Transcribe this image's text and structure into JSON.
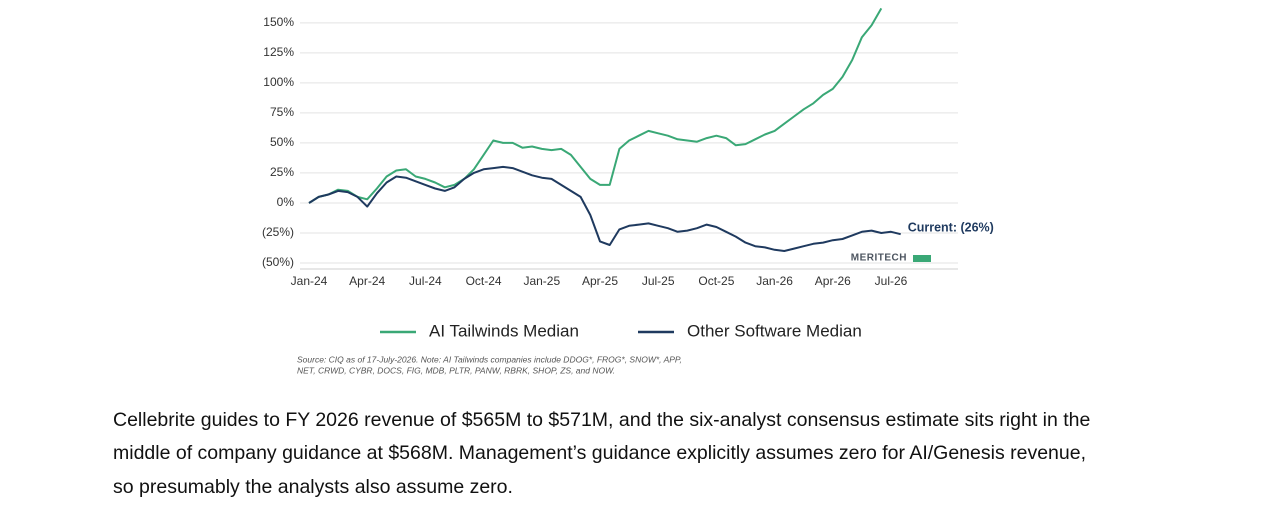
{
  "chart_data": {
    "type": "line",
    "categories": [
      "Jan-24",
      null,
      null,
      null,
      null,
      null,
      "Apr-24",
      null,
      null,
      null,
      null,
      null,
      "Jul-24",
      null,
      null,
      null,
      null,
      null,
      "Oct-24",
      null,
      null,
      null,
      null,
      null,
      "Jan-25",
      null,
      null,
      null,
      null,
      null,
      "Apr-25",
      null,
      null,
      null,
      null,
      null,
      "Jul-25",
      null,
      null,
      null,
      null,
      null,
      "Oct-25",
      null,
      null,
      null,
      null,
      null,
      "Jan-26",
      null,
      null,
      null,
      null,
      null,
      "Apr-26",
      null,
      null,
      null,
      null,
      null,
      "Jul-26",
      null
    ],
    "series": [
      {
        "name": "AI Tailwinds Median",
        "color": "#3aa876",
        "values": [
          0,
          5,
          7,
          11,
          10,
          5,
          3,
          12,
          22,
          27,
          28,
          22,
          20,
          17,
          13,
          15,
          20,
          28,
          40,
          52,
          50,
          50,
          46,
          47,
          45,
          44,
          45,
          40,
          30,
          20,
          15,
          15,
          45,
          52,
          56,
          60,
          58,
          56,
          53,
          52,
          51,
          54,
          56,
          54,
          48,
          49,
          53,
          57,
          60,
          66,
          72,
          78,
          83,
          90,
          95,
          105,
          119,
          138,
          148,
          162,
          null,
          null
        ]
      },
      {
        "name": "Other Software Median",
        "color": "#1f3a5f",
        "values": [
          0,
          5,
          7,
          10,
          9,
          5,
          -3,
          8,
          17,
          22,
          21,
          18,
          15,
          12,
          10,
          13,
          20,
          25,
          28,
          29,
          30,
          29,
          26,
          23,
          21,
          20,
          15,
          10,
          5,
          -10,
          -32,
          -35,
          -22,
          -19,
          -18,
          -17,
          -19,
          -21,
          -24,
          -23,
          -21,
          -18,
          -20,
          -24,
          -28,
          -33,
          -36,
          -37,
          -39,
          -40,
          -38,
          -36,
          -34,
          -33,
          -31,
          -30,
          -27,
          -24,
          -23,
          -25,
          -24,
          -26
        ]
      }
    ],
    "ylim": [
      -55,
      169
    ],
    "yticks": [
      {
        "value": -50,
        "label": "(50%)"
      },
      {
        "value": -25,
        "label": "(25%)"
      },
      {
        "value": 0,
        "label": "0%"
      },
      {
        "value": 25,
        "label": "25%"
      },
      {
        "value": 50,
        "label": "50%"
      },
      {
        "value": 75,
        "label": "75%"
      },
      {
        "value": 100,
        "label": "100%"
      },
      {
        "value": 125,
        "label": "125%"
      },
      {
        "value": 150,
        "label": "150%"
      }
    ],
    "grid": true,
    "legend": "bottom",
    "annotation": "Current: (26%)",
    "logo": "MERITECH",
    "source": [
      "Source: CIQ as of 17-July-2026. Note: AI Tailwinds companies include DDOG*, FROG*, SNOW*, APP,",
      "NET, CRWD, CYBR, DOCS, FIG, MDB, PLTR, PANW, RBRK, SHOP, ZS, and NOW."
    ]
  },
  "document": {
    "paragraph": [
      "Cellebrite guides to FY 2026 revenue of $565M to $571M, and the six-analyst consensus estimate sits right in the",
      "middle of company guidance at $568M. Management’s guidance explicitly assumes zero for AI/Genesis revenue,",
      "so presumably the analysts also assume zero."
    ]
  }
}
